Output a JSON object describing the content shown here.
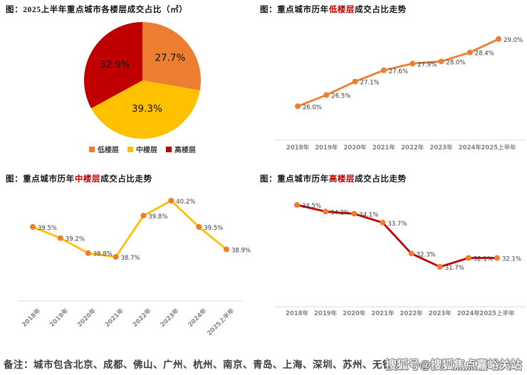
{
  "page": {
    "note": "备注：城市包含北京、成都、佛山、广州、杭州、南京、青岛、上海、深圳、苏州、无锡",
    "watermark": "搜狐号@搜狐焦点嘉峪关站"
  },
  "colors": {
    "orange": "#ED7D31",
    "yellow": "#FFC000",
    "red": "#C00000",
    "axis_line": "#D9D9D9",
    "tick_text": "#828282",
    "data_label_text": "#3a3a3a"
  },
  "chart_data": [
    {
      "type": "pie",
      "title_prefix": "图：",
      "title": "2025上半年重点城市各楼层成交占比（㎡）",
      "legend_position": "bottom",
      "slices": [
        {
          "label": "低楼层",
          "value": 27.7,
          "display": "27.7%",
          "color": "#ED7D31"
        },
        {
          "label": "中楼层",
          "value": 39.3,
          "display": "39.3%",
          "color": "#FFC000"
        },
        {
          "label": "高楼层",
          "value": 32.9,
          "display": "32.9%",
          "color": "#C00000"
        }
      ]
    },
    {
      "type": "line",
      "title_prefix": "图：重点城市历年",
      "title_highlight": "低楼层",
      "title_suffix": "成交占比走势",
      "categories": [
        "2018年",
        "2019年",
        "2020年",
        "2021年",
        "2022年",
        "2023年",
        "2024年",
        "2025上半年"
      ],
      "values": [
        26.0,
        26.5,
        27.1,
        27.6,
        27.9,
        28.0,
        28.4,
        29.0
      ],
      "labels": [
        "26.0%",
        "26.5%",
        "27.1%",
        "27.6%",
        "27.9%",
        "28.0%",
        "28.4%",
        "29.0%"
      ],
      "ylim": [
        25.5,
        29.5
      ],
      "grid": false,
      "legend": "none",
      "line_color": "#ED7D31",
      "marker_color": "#ED7D31"
    },
    {
      "type": "line",
      "title_prefix": "图：重点城市历年",
      "title_highlight": "中楼层",
      "title_suffix": "成交占比走势",
      "categories": [
        "2018年",
        "2019年",
        "2020年",
        "2021年",
        "2022年",
        "2023年",
        "2024年",
        "2025上半年"
      ],
      "values": [
        39.5,
        39.2,
        38.8,
        38.7,
        39.8,
        40.2,
        39.5,
        38.9
      ],
      "labels": [
        "39.5%",
        "39.2%",
        "38.8%",
        "38.7%",
        "39.8%",
        "40.2%",
        "39.5%",
        "38.9%"
      ],
      "ylim": [
        38.3,
        40.6
      ],
      "grid": false,
      "legend": "none",
      "line_color": "#FFC000",
      "marker_color": "#ED7D31"
    },
    {
      "type": "line",
      "title_prefix": "图：重点城市历年",
      "title_highlight": "高楼层",
      "title_suffix": "成交占比走势",
      "categories": [
        "2018年",
        "2019年",
        "2020年",
        "2021年",
        "2022年",
        "2023年",
        "2024年",
        "2025上半年"
      ],
      "values": [
        34.5,
        34.2,
        34.1,
        33.7,
        32.3,
        31.7,
        32.1,
        32.1
      ],
      "labels": [
        "34.5%",
        "34.2%",
        "34.1%",
        "33.7%",
        "32.3%",
        "31.7%",
        "32.1%",
        "32.1%"
      ],
      "ylim": [
        31.0,
        35.0
      ],
      "grid": false,
      "legend": "none",
      "line_color": "#C00000",
      "marker_color": "#ED7D31"
    }
  ]
}
